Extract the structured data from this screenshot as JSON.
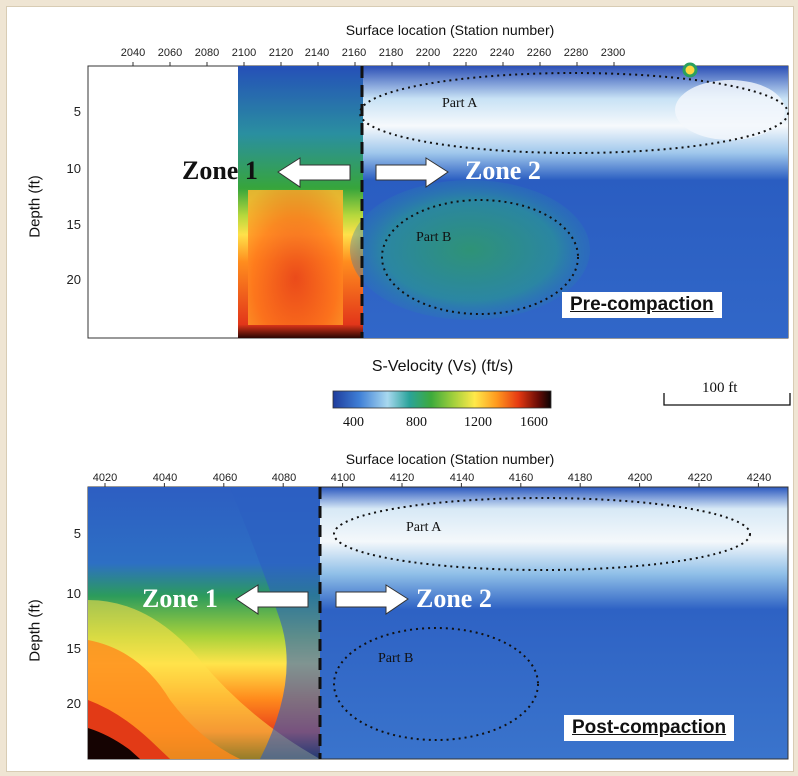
{
  "chart_data": [
    {
      "type": "heatmap",
      "panel": "top",
      "title": "Pre-compaction",
      "xlabel": "Surface location (Station number)",
      "ylabel": "Depth (ft)",
      "xticks": [
        "2040",
        "2060",
        "2080",
        "2100",
        "2120",
        "2140",
        "2160",
        "2180",
        "2200",
        "2220",
        "2240",
        "2260",
        "2280",
        "2300"
      ],
      "yticks": [
        "5",
        "10",
        "15",
        "20"
      ],
      "zone_left": "Zone 1",
      "zone_right": "Zone 2",
      "part_a": "Part A",
      "part_b": "Part B"
    },
    {
      "type": "heatmap",
      "panel": "bottom",
      "title": "Post-compaction",
      "xlabel": "Surface location (Station number)",
      "ylabel": "Depth (ft)",
      "xticks": [
        "4020",
        "4040",
        "4060",
        "4080",
        "4100",
        "4120",
        "4140",
        "4160",
        "4180",
        "4200",
        "4220",
        "4240"
      ],
      "yticks": [
        "5",
        "10",
        "15",
        "20"
      ],
      "zone_left": "Zone 1",
      "zone_right": "Zone 2",
      "part_a": "Part A",
      "part_b": "Part B"
    }
  ],
  "colorbar": {
    "title": "S-Velocity (Vs) (ft/s)",
    "ticks": [
      "400",
      "800",
      "1200",
      "1600"
    ],
    "colors": [
      "#1e3c9c",
      "#3f7fd6",
      "#a8d8ef",
      "#2aa39a",
      "#3daa3c",
      "#9fcf3c",
      "#ffe94a",
      "#ff9a1f",
      "#e63a12",
      "#6b0c06",
      "#0a0303"
    ]
  },
  "scale_bar": {
    "label": "100 ft"
  }
}
